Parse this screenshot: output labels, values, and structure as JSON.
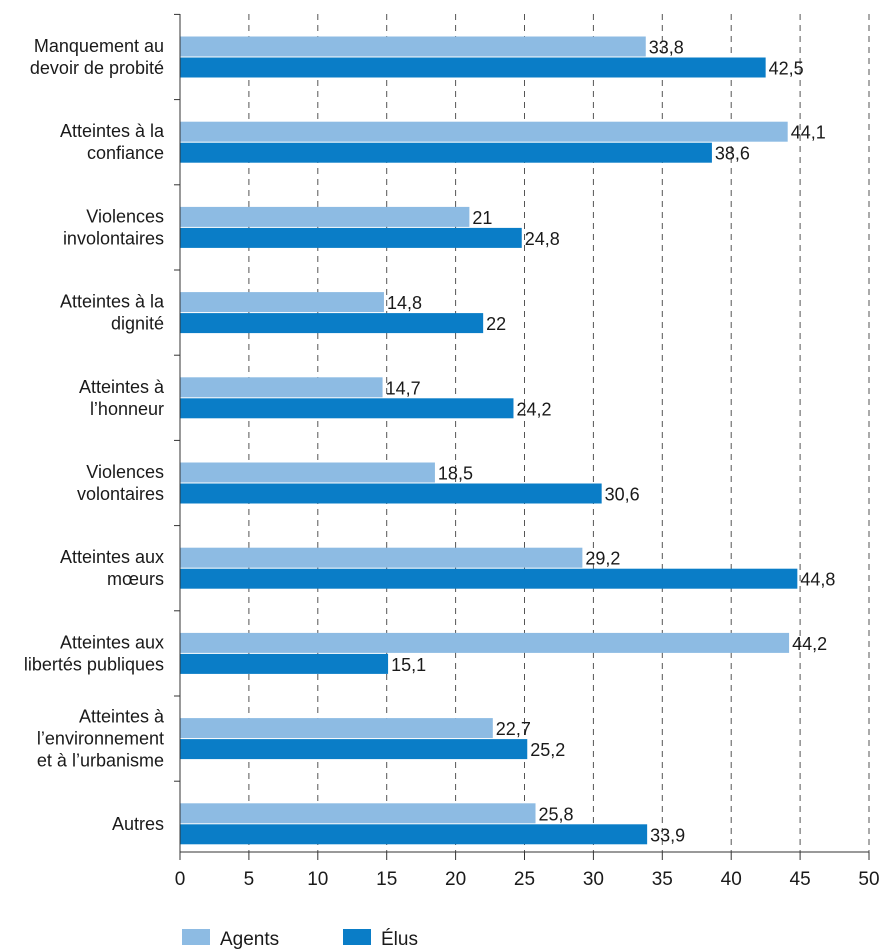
{
  "chart_data": {
    "type": "bar",
    "orientation": "horizontal",
    "categories": [
      [
        "Manquement au",
        "devoir de probité"
      ],
      [
        "Atteintes à la",
        "confiance"
      ],
      [
        "Violences",
        "involontaires"
      ],
      [
        "Atteintes à la",
        "dignité"
      ],
      [
        "Atteintes à",
        "l’honneur"
      ],
      [
        "Violences",
        "volontaires"
      ],
      [
        "Atteintes aux",
        "mœurs"
      ],
      [
        "Atteintes aux",
        "libertés publiques"
      ],
      [
        "Atteintes à",
        "l’environnement",
        "et à l’urbanisme"
      ],
      [
        "Autres"
      ]
    ],
    "series": [
      {
        "name": "Agents",
        "color": "#8dbbe3",
        "values": [
          33.8,
          44.1,
          21,
          14.8,
          14.7,
          18.5,
          29.2,
          44.2,
          22.7,
          25.8
        ],
        "labels": [
          "33,8",
          "44,1",
          "21",
          "14,8",
          "14,7",
          "18,5",
          "29,2",
          "44,2",
          "22,7",
          "25,8"
        ]
      },
      {
        "name": "Élus",
        "color": "#0a7dc7",
        "values": [
          42.5,
          38.6,
          24.8,
          22,
          24.2,
          30.6,
          44.8,
          15.1,
          25.2,
          33.9
        ],
        "labels": [
          "42,5",
          "38,6",
          "24,8",
          "22",
          "24,2",
          "30,6",
          "44,8",
          "15,1",
          "25,2",
          "33,9"
        ]
      }
    ],
    "xlim": [
      0,
      50
    ],
    "xticks": [
      "0",
      "5",
      "10",
      "15",
      "20",
      "25",
      "30",
      "35",
      "40",
      "45",
      "50"
    ],
    "grid": "vertical-dashed",
    "legend_position": "bottom-left"
  }
}
